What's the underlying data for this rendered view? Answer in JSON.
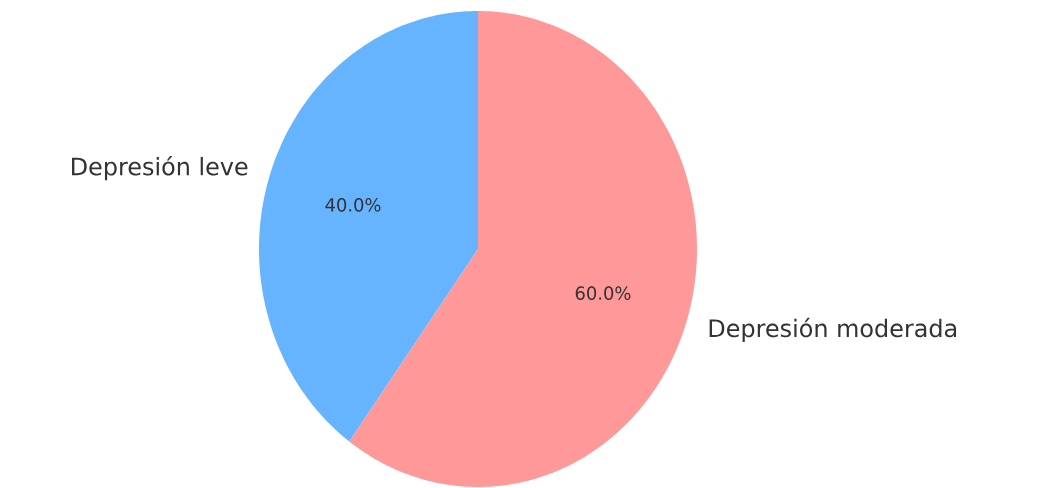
{
  "chart_data": {
    "type": "pie",
    "categories": [
      "Depresión leve",
      "Depresión moderada"
    ],
    "values": [
      40,
      60
    ],
    "colors": [
      "#66b3ff",
      "#ff9999"
    ],
    "value_labels": [
      "40.0%",
      "60.0%"
    ]
  }
}
